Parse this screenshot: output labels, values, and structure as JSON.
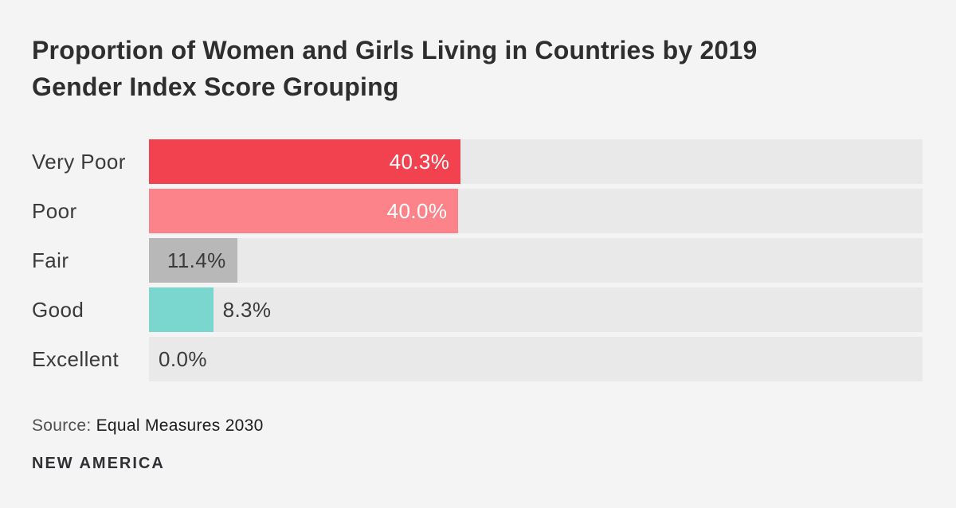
{
  "title": {
    "line1": "Proportion of Women and Girls Living in Countries by 2019",
    "line2": "Gender Index Score Grouping"
  },
  "source": {
    "prefix": "Source:",
    "text": "Equal Measures 2030"
  },
  "branding": "NEW AMERICA",
  "colors": {
    "background": "#f5f4f4",
    "track": "#eae9e9",
    "title_text": "#2e2e2e",
    "category_text": "#3a3a3a",
    "very_poor_bar": "#f2424f",
    "poor_bar": "#fc838a",
    "fair_bar": "#b9b8b8",
    "good_bar": "#79d7cf"
  },
  "chart_data": {
    "type": "bar",
    "orientation": "horizontal",
    "title": "Proportion of Women and Girls Living in Countries by 2019 Gender Index Score Grouping",
    "xlabel": "",
    "ylabel": "",
    "xlim": [
      0,
      100
    ],
    "grid": false,
    "legend": false,
    "unit": "%",
    "source": "Equal Measures 2030",
    "categories": [
      "Very Poor",
      "Poor",
      "Fair",
      "Good",
      "Excellent"
    ],
    "values": [
      40.3,
      40.0,
      11.4,
      8.3,
      0.0
    ],
    "rows": [
      {
        "label": "Very Poor",
        "value": 40.3,
        "display": "40.3%",
        "bar_color": "#f2424f",
        "value_label_color": "#ffffff",
        "value_label_position": "inside-right"
      },
      {
        "label": "Poor",
        "value": 40.0,
        "display": "40.0%",
        "bar_color": "#fc838a",
        "value_label_color": "#ffffff",
        "value_label_position": "inside-right"
      },
      {
        "label": "Fair",
        "value": 11.4,
        "display": "11.4%",
        "bar_color": "#b9b8b8",
        "value_label_color": "#3a3a3a",
        "value_label_position": "inside-right"
      },
      {
        "label": "Good",
        "value": 8.3,
        "display": "8.3%",
        "bar_color": "#79d7cf",
        "value_label_color": "#3a3a3a",
        "value_label_position": "outside-right"
      },
      {
        "label": "Excellent",
        "value": 0.0,
        "display": "0.0%",
        "bar_color": "",
        "value_label_color": "#3a3a3a",
        "value_label_position": "outside-right"
      }
    ]
  }
}
